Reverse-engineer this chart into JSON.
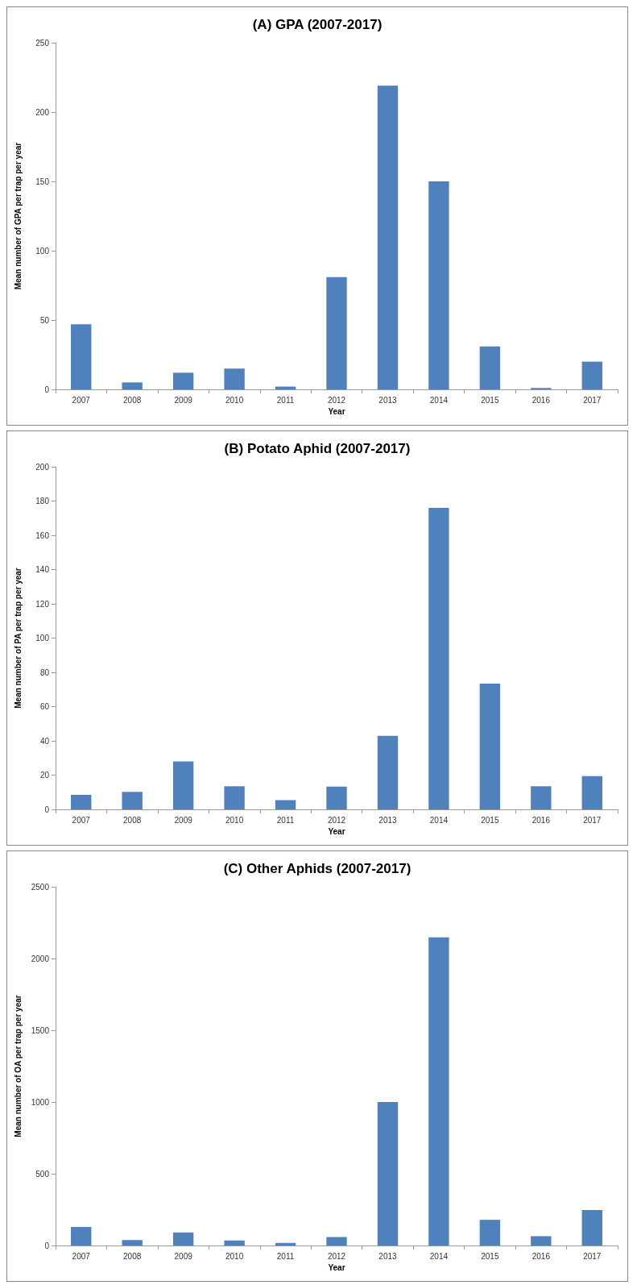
{
  "chart_data": [
    {
      "type": "bar",
      "title": "(A) GPA (2007-2017)",
      "xlabel": "Year",
      "ylabel": "Mean number of GPA per trap per year",
      "categories": [
        "2007",
        "2008",
        "2009",
        "2010",
        "2011",
        "2012",
        "2013",
        "2014",
        "2015",
        "2016",
        "2017"
      ],
      "values": [
        47,
        5,
        12,
        15,
        2,
        81,
        219,
        150,
        31,
        1,
        20
      ],
      "color": "#4f81bd",
      "ylim": [
        0,
        250
      ],
      "yticks": [
        0,
        50,
        100,
        150,
        200,
        250
      ],
      "grid": false
    },
    {
      "type": "bar",
      "title": "(B) Potato Aphid (2007-2017)",
      "xlabel": "Year",
      "ylabel": "Mean number of PA per trap per year",
      "categories": [
        "2007",
        "2008",
        "2009",
        "2010",
        "2011",
        "2012",
        "2013",
        "2014",
        "2015",
        "2016",
        "2017"
      ],
      "values": [
        8.5,
        10.2,
        28,
        13.5,
        5.4,
        13.3,
        43,
        176,
        73.4,
        13.5,
        19.4
      ],
      "color": "#4f81bd",
      "ylim": [
        0,
        200
      ],
      "yticks": [
        0,
        20,
        40,
        60,
        80,
        100,
        120,
        140,
        160,
        180,
        200
      ],
      "grid": false
    },
    {
      "type": "bar",
      "title": "(C) Other Aphids (2007-2017)",
      "xlabel": "Year",
      "ylabel": "Mean number of OA per trap per year",
      "categories": [
        "2007",
        "2008",
        "2009",
        "2010",
        "2011",
        "2012",
        "2013",
        "2014",
        "2015",
        "2016",
        "2017"
      ],
      "values": [
        129,
        38,
        91,
        35,
        18,
        59,
        1000,
        2148,
        179,
        65,
        247
      ],
      "color": "#4f81bd",
      "ylim": [
        0,
        2500
      ],
      "yticks": [
        0,
        500,
        1000,
        1500,
        2000,
        2500
      ],
      "grid": false
    }
  ]
}
